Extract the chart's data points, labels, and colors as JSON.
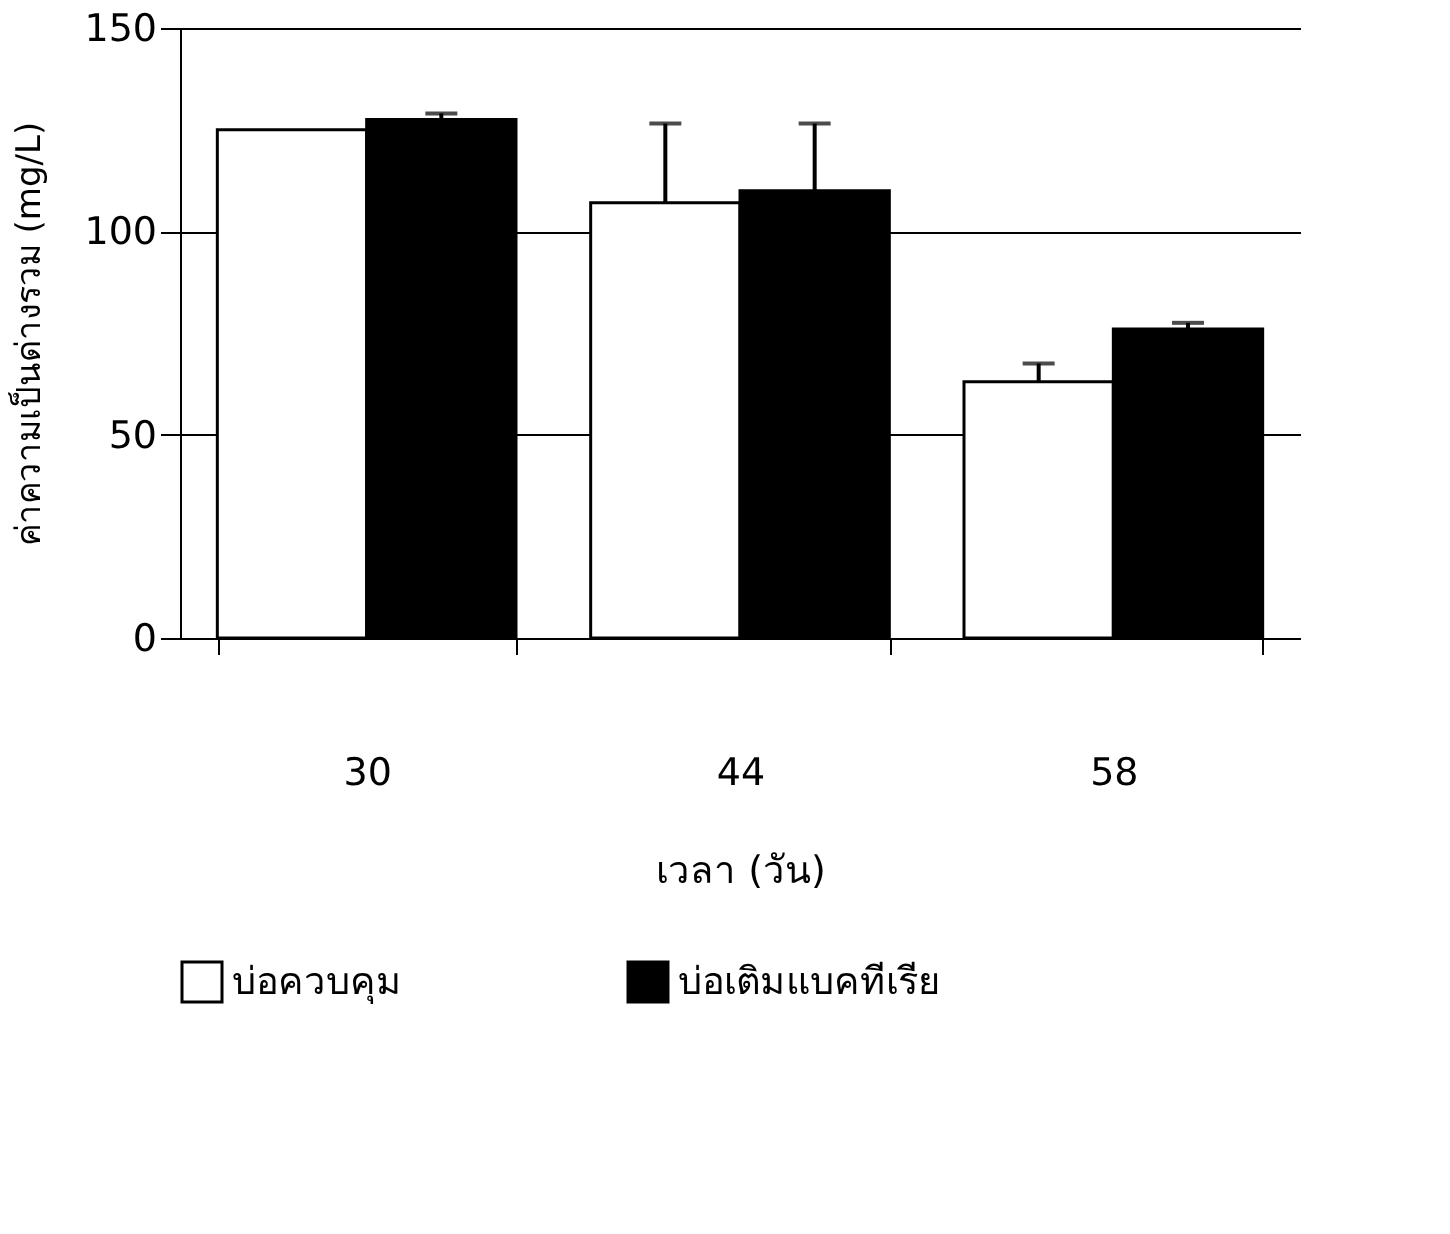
{
  "chart_data": {
    "type": "bar",
    "xlabel": "เวลา (วัน)",
    "ylabel": "ค่าความเป็นด่างรวม (mg/L)",
    "categories": [
      "30",
      "44",
      "58"
    ],
    "series": [
      {
        "name": "บ่อควบคุม",
        "color": "#ffffff",
        "values": [
          125,
          107,
          63
        ],
        "errors": [
          null,
          [
            107,
            126.5
          ],
          [
            63,
            67.5
          ]
        ]
      },
      {
        "name": "บ่อเติมแบคทีเรีย",
        "color": "#000000",
        "values": [
          127.5,
          110,
          76
        ],
        "errors": [
          [
            127.5,
            129
          ],
          [
            110,
            126.5
          ],
          [
            76,
            77.5
          ]
        ]
      }
    ],
    "ylim": [
      0,
      150
    ],
    "yticks": [
      0,
      50,
      100,
      150
    ],
    "grid": "y",
    "legend": "bottom"
  }
}
